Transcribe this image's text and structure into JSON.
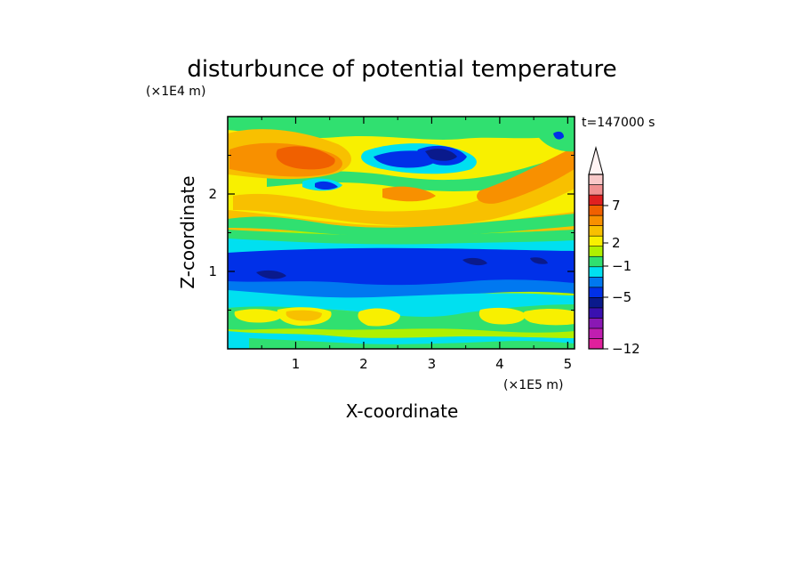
{
  "chart_data": {
    "type": "heatmap",
    "title": "disturbunce of potential temperature",
    "xlabel": "X-coordinate",
    "ylabel": "Z-coordinate",
    "x_unit": "(×1E5 m)",
    "y_unit": "(×1E4 m)",
    "time_label": "t=147000 s",
    "xlim": [
      0,
      5.1
    ],
    "ylim": [
      0,
      3.0
    ],
    "x_ticks": [
      1,
      2,
      3,
      4,
      5
    ],
    "y_ticks": [
      1,
      2
    ],
    "colorbar": {
      "levels": [
        -12,
        -11,
        -10,
        -9,
        -8,
        -7,
        -6,
        -5,
        -4,
        -3,
        -2,
        -1,
        0,
        1,
        2,
        3,
        4,
        5,
        6,
        7,
        8,
        9,
        10
      ],
      "labeled_ticks": [
        -12,
        -5,
        -1,
        2,
        7
      ],
      "tick_labels": [
        "−12",
        "−5",
        "−1",
        "2",
        "7"
      ],
      "colors": [
        "#e0209c",
        "#c01eb0",
        "#8a18b4",
        "#3a10b0",
        "#0a1a8c",
        "#0030e8",
        "#0078f0",
        "#00e0f0",
        "#30e070",
        "#b0f000",
        "#f8f000",
        "#f8c000",
        "#f89000",
        "#f06000",
        "#e02020",
        "#f09090",
        "#f8c8c8"
      ],
      "extend": "max"
    },
    "bands": [
      {
        "z": [
          0.0,
          0.12
        ],
        "level": 1,
        "description": "cyan/green surface layer"
      },
      {
        "z": [
          0.12,
          0.58
        ],
        "level": 2,
        "description": "green-yellow with yellow cells"
      },
      {
        "z": [
          0.58,
          0.78
        ],
        "level": 0,
        "description": "cyan"
      },
      {
        "z": [
          0.78,
          1.28
        ],
        "level": -4,
        "description": "blue minimum"
      },
      {
        "z": [
          1.28,
          1.38
        ],
        "level": 0,
        "description": "cyan"
      },
      {
        "z": [
          1.38,
          1.55
        ],
        "level": 1,
        "description": "green"
      },
      {
        "z": [
          1.55,
          3.0
        ],
        "level": 3,
        "description": "yellow-orange upper layer with blue cells"
      }
    ]
  }
}
